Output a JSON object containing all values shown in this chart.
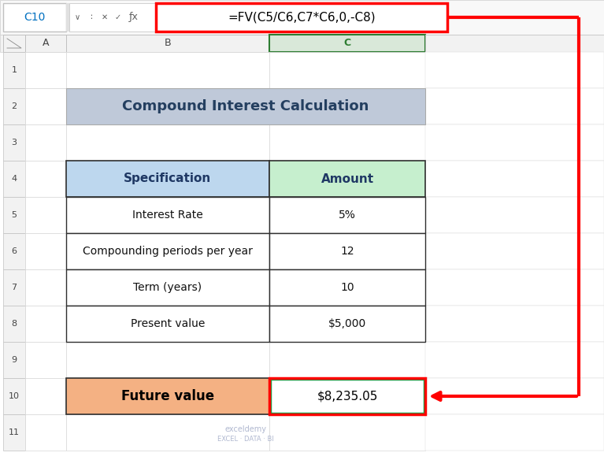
{
  "fig_width": 7.67,
  "fig_height": 5.84,
  "bg_color": "#ffffff",
  "formula_bar_text": "=FV(C5/C6,C7*C6,0,-C8)",
  "cell_ref": "C10",
  "col_header_title": "Compound Interest Calculation",
  "title_bg": "#bfc9d9",
  "spec_header": "Specification",
  "amount_header": "Amount",
  "spec_header_bg": "#bdd7ee",
  "amount_header_bg": "#c6efce",
  "rows": [
    {
      "spec": "Interest Rate",
      "amount": "5%"
    },
    {
      "spec": "Compounding periods per year",
      "amount": "12"
    },
    {
      "spec": "Term (years)",
      "amount": "10"
    },
    {
      "spec": "Present value",
      "amount": "$5,000"
    }
  ],
  "future_value_label": "Future value",
  "future_value_amount": "$8,235.05",
  "future_label_bg": "#f4b183",
  "red_color": "#ff0000",
  "green_border_color": "#00b050",
  "row_hdr_bg": "#f2f2f2",
  "col_hdr_bg": "#f2f2f2",
  "col_c_hdr_bg": "#d9e8d9",
  "col_c_hdr_ec": "#2e7d32",
  "grid_line_color": "#d0d0d0",
  "table_border_color": "#000000",
  "watermark_line1": "exceldemy",
  "watermark_line2": "EXCEL · DATA · BI",
  "watermark_color": "#b0b8d0"
}
